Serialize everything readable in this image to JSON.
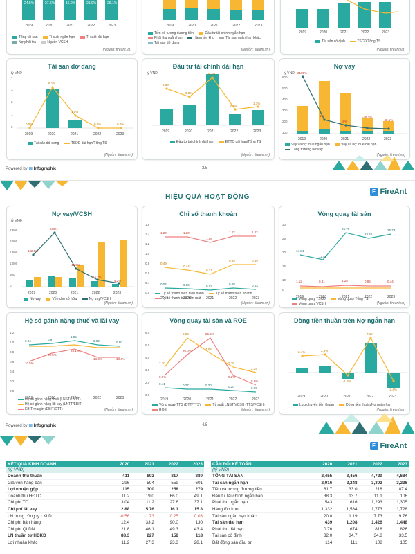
{
  "colors": {
    "teal": "#2aa9a0",
    "orange": "#f7b733",
    "pink": "#f08080",
    "dark": "#2f6f73",
    "blue": "#2e8fd8"
  },
  "top_partial": {
    "years": [
      "2019",
      "2020",
      "2021",
      "2022",
      "2023"
    ],
    "card1": {
      "labels": [
        "24.5%",
        "27.6%",
        "16.2%",
        "21.9%",
        "26.1%"
      ],
      "legend": [
        "Tổng tài sản",
        "Tỉ suất ngắn hạn",
        "Tỉ suất dài hạn",
        "Nợ phải trả",
        "Nguồn VCSH"
      ]
    },
    "card2": {
      "legend": [
        "Tiền và tương đương tiền",
        "Đầu tư tài chính ngắn hạn",
        "Phải thu ngắn hạn",
        "Hàng tồn kho",
        "Tài sản ngắn hạn khác",
        "Tài sản dở dang"
      ]
    },
    "card3": {
      "legend": [
        "Tài sản cố định",
        "TSCĐ/Tổng TS"
      ]
    },
    "source": "(Nguồn: fireant.vn)",
    "unit": "Tổng TS"
  },
  "page3": {
    "unit": "tỷ VNĐ",
    "source": "(Nguồn: fireant.vn)",
    "cards": {
      "dodang": {
        "title": "Tài sản dở dang",
        "legend": [
          "Tài sản dở dang",
          "TSDD dài hạn/Tổng TS"
        ]
      },
      "dautu": {
        "title": "Đầu tư tài chính dài hạn",
        "legend": [
          "Đầu tư tài chính dài hạn",
          "ĐTTC dài hạn/Tổng TS"
        ]
      },
      "novay": {
        "title": "Nợ vay",
        "legend": [
          "Vay và nợ thuê ngắn hạn",
          "Vay và nợ thuê dài hạn",
          "Tăng trưởng nợ vay"
        ]
      }
    },
    "footer_prefix": "Powered by",
    "footer_brand": "Infographic",
    "page_num": "3/5"
  },
  "page4": {
    "section_title": "HIỆU QUẢ HOẠT ĐỘNG",
    "logo_text": "FireAnt",
    "unit": "tỷ VNĐ",
    "source": "(Nguồn: fireant.vn)",
    "cards": {
      "novay_vcsh": {
        "title": "Nợ vay/VCSH",
        "legend": [
          "Nợ vay",
          "Vốn chủ sở hữu",
          "Nợ vay/VCSH"
        ]
      },
      "thanhkhoan": {
        "title": "Chỉ số thanh khoản",
        "legend": [
          "Tỷ số thanh toán hiện hành",
          "Tỷ số thanh toán nhanh",
          "Tỷ số thanh toán tiền mặt"
        ]
      },
      "vongquay": {
        "title": "Vòng quay tài sản",
        "legend": [
          "Vòng quay TSCĐ",
          "Vòng quay Tổng TS",
          "Vòng quay VCSH"
        ]
      },
      "gnt": {
        "title": "Hệ số gánh nặng thuế và lãi vay",
        "legend": [
          "Hệ số gánh nặng thuế (LNST/LNTT)",
          "Hệ số gánh nặng lãi vay (LNTT/EBIT)",
          "EBIT margin (EBIT/DTT)"
        ]
      },
      "roe": {
        "title": "Vòng quay tài sản và ROE",
        "legend": [
          "Vòng quay TTS (DTT/TTS)",
          "Tỷ suất LNST/VCSH (TTS/VCSH)",
          "ROE"
        ]
      },
      "dongtien": {
        "title": "Dòng tiền thuần trên Nợ ngắn hạn",
        "legend": [
          "Lưu chuyển tiền thuần",
          "Dòng tiền thuần/Nợ ngắn hạn"
        ]
      }
    },
    "footer_prefix": "Powered by",
    "footer_brand": "Infographic",
    "page_num": "4/5"
  },
  "page5": {
    "logo_text": "FireAnt",
    "kqkd": {
      "title": "KẾT QUẢ KINH DOANH",
      "unit": "(tỷ VNĐ)",
      "years": [
        "2020",
        "2021",
        "2022",
        "2023"
      ],
      "rows": [
        {
          "label": "Doanh thu thuần",
          "vals": [
            "411",
            "893",
            "817",
            "880"
          ],
          "bold": true
        },
        {
          "label": "Giá vốn hàng bán",
          "vals": [
            "296",
            "594",
            "559",
            "601"
          ]
        },
        {
          "label": "Lợi nhuận gộp",
          "vals": [
            "115",
            "300",
            "258",
            "279"
          ],
          "bold": true
        },
        {
          "label": "Doanh thu HĐTC",
          "vals": [
            "11.2",
            "19.0",
            "66.0",
            "49.1"
          ]
        },
        {
          "label": "Chi phí TC",
          "vals": [
            "3.04",
            "11.2",
            "27.6",
            "37.1"
          ]
        },
        {
          "label": "Chi phí lãi vay",
          "vals": [
            "2.88",
            "5.76",
            "16.1",
            "15.8"
          ],
          "bold": true
        },
        {
          "label": "LN trong công ty LKLD",
          "vals": [
            "-0.56",
            "-1.73",
            "0.25",
            "0.03"
          ],
          "red": true
        },
        {
          "label": "Chi phí bán hàng",
          "vals": [
            "12.4",
            "33.2",
            "90.0",
            "130"
          ]
        },
        {
          "label": "Chi phí QLDN",
          "vals": [
            "21.8",
            "46.1",
            "49.3",
            "43.4"
          ]
        },
        {
          "label": "LN thuần từ HĐKD",
          "vals": [
            "88.3",
            "227",
            "158",
            "118"
          ],
          "bold": true
        },
        {
          "label": "Lợi nhuận khác",
          "vals": [
            "11.2",
            "27.3",
            "23.3",
            "28.1"
          ]
        }
      ]
    },
    "cdkt": {
      "title": "CÂN ĐỐI KẾ TOÁN",
      "unit": "(tỷ VNĐ)",
      "years": [
        "2020",
        "2021",
        "2022",
        "2023"
      ],
      "rows": [
        {
          "label": "TỔNG TÀI SẢN",
          "vals": [
            "2,455",
            "3,456",
            "4,729",
            "4,684"
          ],
          "bold": true
        },
        {
          "label": "Tài sản ngắn hạn",
          "vals": [
            "2,016",
            "2,248",
            "3,303",
            "3,236"
          ],
          "bold": true
        },
        {
          "label": "Tiền và tương đương tiền",
          "vals": [
            "81.7",
            "33.0",
            "218",
            "87.4"
          ]
        },
        {
          "label": "Đầu tư tài chính ngắn hạn",
          "vals": [
            "38.3",
            "13.7",
            "11.1",
            "106"
          ]
        },
        {
          "label": "Phải thu ngắn hạn",
          "vals": [
            "543",
            "616",
            "1,293",
            "1,305"
          ]
        },
        {
          "label": "Hàng tồn kho",
          "vals": [
            "1,332",
            "1,584",
            "1,773",
            "1,728"
          ]
        },
        {
          "label": "Tài sản ngắn hạn khác",
          "vals": [
            "20.8",
            "1.19",
            "7.73",
            "9.76"
          ]
        },
        {
          "label": "Tài sản dài hạn",
          "vals": [
            "439",
            "1,208",
            "1,426",
            "1,448"
          ],
          "bold": true
        },
        {
          "label": "Phải thu dài hạn",
          "vals": [
            "0.76",
            "674",
            "818",
            "826"
          ]
        },
        {
          "label": "Tài sản cố định",
          "vals": [
            "32.0",
            "34.7",
            "34.8",
            "33.5"
          ]
        },
        {
          "label": "Bất động sản đầu tư",
          "vals": [
            "114",
            "111",
            "108",
            "105"
          ]
        }
      ]
    }
  }
}
